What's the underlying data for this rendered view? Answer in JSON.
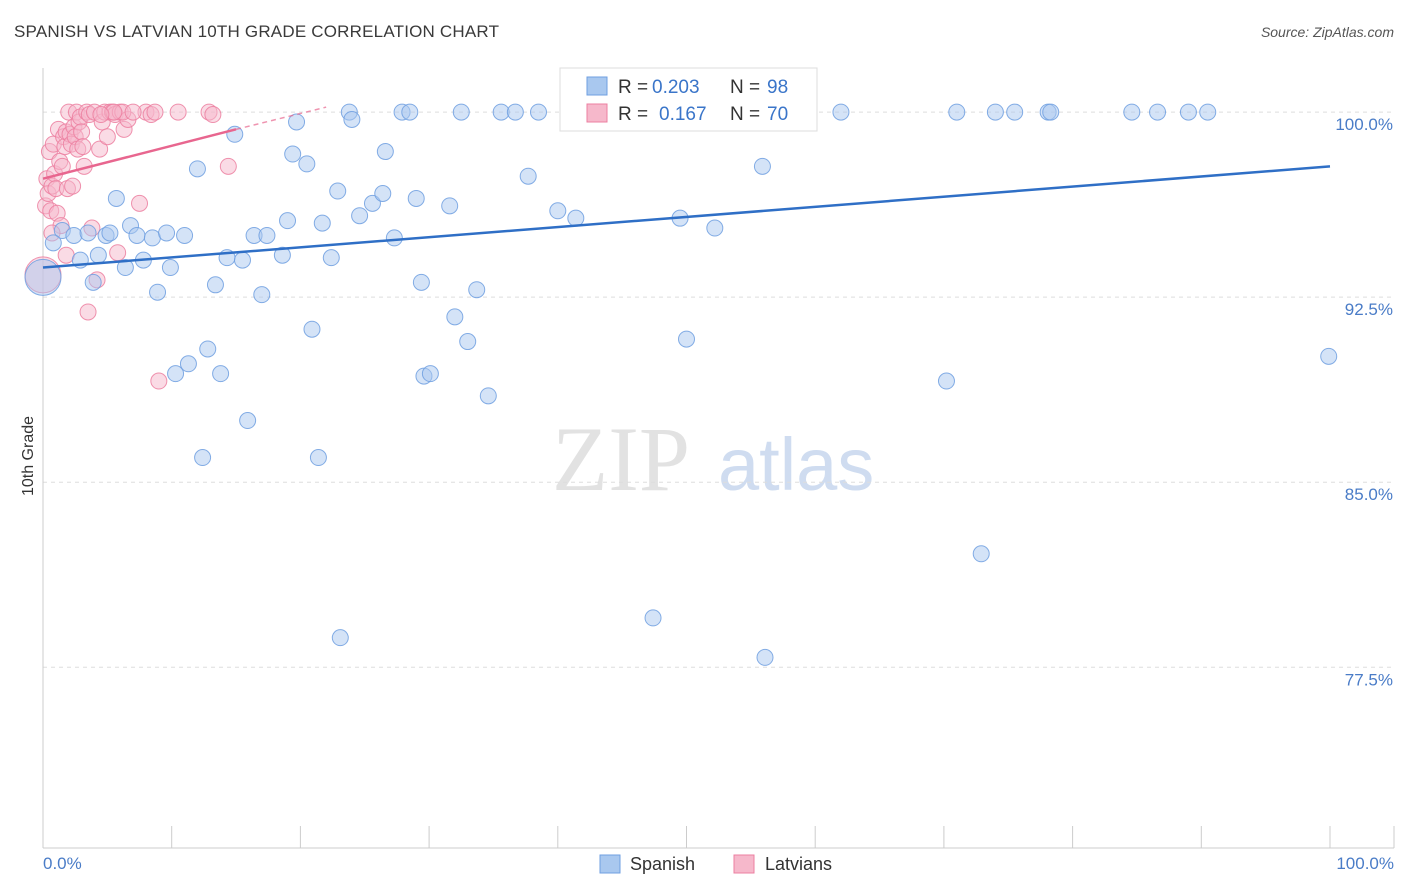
{
  "title": "SPANISH VS LATVIAN 10TH GRADE CORRELATION CHART",
  "source": "Source: ZipAtlas.com",
  "watermark": {
    "zip": "ZIP",
    "atlas": "atlas"
  },
  "colors": {
    "spanish_fill": "#a9c8ef",
    "spanish_stroke": "#6f9fe0",
    "spanish_line": "#2f6fc6",
    "latvian_fill": "#f6b8cb",
    "latvian_stroke": "#ec7fa0",
    "latvian_line": "#e8668f",
    "grid": "#dddddd",
    "axis_label": "#4a7cc7"
  },
  "legend": {
    "spanish": {
      "r_label": "R =",
      "r_value": "0.203",
      "n_label": "N =",
      "n_value": "98"
    },
    "latvian": {
      "r_label": "R =",
      "r_value": "0.167",
      "n_label": "N =",
      "n_value": "70"
    }
  },
  "chart_data": {
    "type": "scatter",
    "title": "SPANISH VS LATVIAN 10TH GRADE CORRELATION CHART",
    "xlabel": "",
    "ylabel": "10th Grade",
    "xlim": [
      0,
      100
    ],
    "ylim": [
      70.5,
      101.3
    ],
    "x_tick_labels": [
      "0.0%",
      "100.0%"
    ],
    "y_ticks": [
      77.5,
      85.0,
      92.5,
      100.0
    ],
    "y_tick_labels": [
      "77.5%",
      "85.0%",
      "92.5%",
      "100.0%"
    ],
    "legend": [
      "Spanish",
      "Latvians"
    ],
    "series": [
      {
        "name": "Spanish",
        "trend": {
          "x": [
            0,
            100
          ],
          "y": [
            93.7,
            97.8
          ]
        },
        "points": [
          [
            0.0,
            93.3,
            1
          ],
          [
            1.5,
            95.2,
            0
          ],
          [
            0.8,
            94.7,
            0
          ],
          [
            2.4,
            95.0,
            0
          ],
          [
            2.9,
            94.0,
            0
          ],
          [
            3.5,
            95.1,
            0
          ],
          [
            4.3,
            94.2,
            0
          ],
          [
            4.9,
            95.0,
            0
          ],
          [
            5.2,
            95.1,
            0
          ],
          [
            3.9,
            93.1,
            0
          ],
          [
            5.7,
            96.5,
            0
          ],
          [
            6.4,
            93.7,
            0
          ],
          [
            6.8,
            95.4,
            0
          ],
          [
            7.3,
            95.0,
            0
          ],
          [
            7.8,
            94.0,
            0
          ],
          [
            8.5,
            94.9,
            0
          ],
          [
            8.9,
            92.7,
            0
          ],
          [
            9.6,
            95.1,
            0
          ],
          [
            9.9,
            93.7,
            0
          ],
          [
            10.3,
            89.4,
            0
          ],
          [
            11.0,
            95.0,
            0
          ],
          [
            11.3,
            89.8,
            0
          ],
          [
            12.0,
            97.7,
            0
          ],
          [
            12.4,
            86.0,
            0
          ],
          [
            12.8,
            90.4,
            0
          ],
          [
            13.4,
            93.0,
            0
          ],
          [
            13.8,
            89.4,
            0
          ],
          [
            14.3,
            94.1,
            0
          ],
          [
            14.9,
            99.1,
            0
          ],
          [
            15.5,
            94.0,
            0
          ],
          [
            15.9,
            87.5,
            0
          ],
          [
            16.4,
            95.0,
            0
          ],
          [
            17.0,
            92.6,
            0
          ],
          [
            17.4,
            95.0,
            0
          ],
          [
            18.6,
            94.2,
            0
          ],
          [
            19.0,
            95.6,
            0
          ],
          [
            19.4,
            98.3,
            0
          ],
          [
            19.7,
            99.6,
            0
          ],
          [
            20.5,
            97.9,
            0
          ],
          [
            20.9,
            91.2,
            0
          ],
          [
            21.4,
            86.0,
            0
          ],
          [
            21.7,
            95.5,
            0
          ],
          [
            22.4,
            94.1,
            0
          ],
          [
            22.9,
            96.8,
            0
          ],
          [
            23.1,
            78.7,
            0
          ],
          [
            23.8,
            100.0,
            0
          ],
          [
            24.0,
            99.7,
            0
          ],
          [
            24.6,
            95.8,
            0
          ],
          [
            25.6,
            96.3,
            0
          ],
          [
            26.4,
            96.7,
            0
          ],
          [
            26.6,
            98.4,
            0
          ],
          [
            27.3,
            94.9,
            0
          ],
          [
            27.9,
            100.0,
            0
          ],
          [
            28.5,
            100.0,
            0
          ],
          [
            29.0,
            96.5,
            0
          ],
          [
            29.4,
            93.1,
            0
          ],
          [
            29.6,
            89.3,
            0
          ],
          [
            30.1,
            89.4,
            0
          ],
          [
            31.6,
            96.2,
            0
          ],
          [
            32.0,
            91.7,
            0
          ],
          [
            32.5,
            100.0,
            0
          ],
          [
            33.0,
            90.7,
            0
          ],
          [
            33.7,
            92.8,
            0
          ],
          [
            34.6,
            88.5,
            0
          ],
          [
            35.6,
            100.0,
            0
          ],
          [
            36.7,
            100.0,
            0
          ],
          [
            37.7,
            97.4,
            0
          ],
          [
            38.5,
            100.0,
            0
          ],
          [
            40.0,
            96.0,
            0
          ],
          [
            41.4,
            95.7,
            0
          ],
          [
            42.0,
            100.0,
            0
          ],
          [
            47.0,
            100.0,
            0
          ],
          [
            47.4,
            79.5,
            0
          ],
          [
            49.5,
            95.7,
            0
          ],
          [
            50.0,
            90.8,
            0
          ],
          [
            52.2,
            95.3,
            0
          ],
          [
            55.1,
            100.0,
            0
          ],
          [
            55.9,
            97.8,
            0
          ],
          [
            56.1,
            77.9,
            0
          ],
          [
            57.0,
            100.0,
            0
          ],
          [
            62.0,
            100.0,
            0
          ],
          [
            70.2,
            89.1,
            0
          ],
          [
            71.0,
            100.0,
            0
          ],
          [
            72.9,
            82.1,
            0
          ],
          [
            74.0,
            100.0,
            0
          ],
          [
            75.5,
            100.0,
            0
          ],
          [
            78.1,
            100.0,
            0
          ],
          [
            78.3,
            100.0,
            0
          ],
          [
            84.6,
            100.0,
            0
          ],
          [
            86.6,
            100.0,
            0
          ],
          [
            89.0,
            100.0,
            0
          ],
          [
            90.5,
            100.0,
            0
          ],
          [
            99.9,
            90.1,
            0
          ]
        ]
      },
      {
        "name": "Latvians",
        "trend": {
          "x": [
            0,
            15
          ],
          "y": [
            97.3,
            99.3
          ]
        },
        "trend_dashed": {
          "x": [
            15,
            22
          ],
          "y": [
            99.3,
            100.2
          ]
        },
        "points": [
          [
            0.0,
            93.4,
            1
          ],
          [
            0.2,
            96.2,
            0
          ],
          [
            0.3,
            97.3,
            0
          ],
          [
            0.4,
            96.7,
            0
          ],
          [
            0.5,
            98.4,
            0
          ],
          [
            0.6,
            96.0,
            0
          ],
          [
            0.7,
            97.0,
            0
          ],
          [
            0.8,
            98.7,
            0
          ],
          [
            0.9,
            97.5,
            0
          ],
          [
            1.0,
            96.9,
            0
          ],
          [
            1.1,
            95.9,
            0
          ],
          [
            1.2,
            99.3,
            0
          ],
          [
            1.3,
            98.0,
            0
          ],
          [
            1.4,
            95.4,
            0
          ],
          [
            1.5,
            97.8,
            0
          ],
          [
            1.6,
            99.0,
            0
          ],
          [
            1.7,
            98.6,
            0
          ],
          [
            1.8,
            99.2,
            0
          ],
          [
            1.9,
            96.9,
            0
          ],
          [
            2.0,
            100.0,
            0
          ],
          [
            2.1,
            99.1,
            0
          ],
          [
            2.2,
            98.7,
            0
          ],
          [
            2.3,
            97.0,
            0
          ],
          [
            2.4,
            99.4,
            0
          ],
          [
            2.5,
            99.0,
            0
          ],
          [
            2.6,
            100.0,
            0
          ],
          [
            2.7,
            98.5,
            0
          ],
          [
            2.8,
            99.6,
            0
          ],
          [
            2.9,
            99.8,
            0
          ],
          [
            3.0,
            99.2,
            0
          ],
          [
            3.1,
            98.6,
            0
          ],
          [
            3.2,
            97.8,
            0
          ],
          [
            3.4,
            100.0,
            0
          ],
          [
            3.6,
            99.9,
            0
          ],
          [
            3.8,
            95.3,
            0
          ],
          [
            4.0,
            100.0,
            0
          ],
          [
            4.2,
            93.2,
            0
          ],
          [
            4.4,
            98.5,
            0
          ],
          [
            4.6,
            99.6,
            0
          ],
          [
            4.8,
            100.0,
            0
          ],
          [
            5.0,
            99.0,
            0
          ],
          [
            5.2,
            100.0,
            0
          ],
          [
            5.4,
            100.0,
            0
          ],
          [
            5.6,
            99.9,
            0
          ],
          [
            5.8,
            94.3,
            0
          ],
          [
            6.0,
            100.0,
            0
          ],
          [
            6.3,
            99.3,
            0
          ],
          [
            6.6,
            99.7,
            0
          ],
          [
            7.5,
            96.3,
            0
          ],
          [
            8.0,
            100.0,
            0
          ],
          [
            8.4,
            99.9,
            0
          ],
          [
            8.7,
            100.0,
            0
          ],
          [
            9.0,
            89.1,
            0
          ],
          [
            10.5,
            100.0,
            0
          ],
          [
            12.9,
            100.0,
            0
          ],
          [
            13.2,
            99.9,
            0
          ],
          [
            14.4,
            97.8,
            0
          ],
          [
            0.7,
            95.1,
            0
          ],
          [
            1.8,
            94.2,
            0
          ],
          [
            3.5,
            91.9,
            0
          ],
          [
            6.2,
            100.0,
            0
          ],
          [
            7.0,
            100.0,
            0
          ],
          [
            5.5,
            100.0,
            0
          ],
          [
            4.5,
            99.9,
            0
          ]
        ]
      }
    ]
  }
}
